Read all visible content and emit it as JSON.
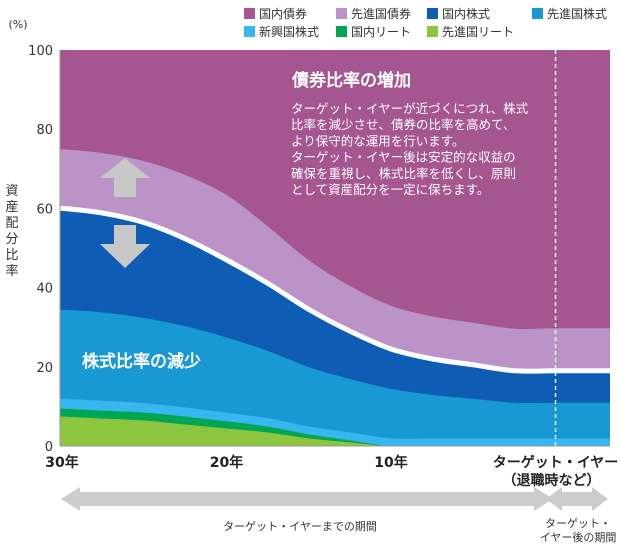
{
  "chart_data": {
    "type": "area",
    "stacked": true,
    "ylabel": "資産配分比率",
    "yunit": "(%)",
    "ylim": [
      0,
      100
    ],
    "yticks": [
      "0",
      "20",
      "40",
      "60",
      "80",
      "100"
    ],
    "x_positions": [
      30,
      27.5,
      25,
      22.5,
      20,
      17.5,
      15,
      12.5,
      10,
      7.5,
      5,
      2.5,
      0,
      -2.5,
      -4
    ],
    "xticks": [
      {
        "x": 30,
        "label": "30年"
      },
      {
        "x": 20,
        "label": "20年"
      },
      {
        "x": 10,
        "label": "10年"
      },
      {
        "x": 0,
        "label": "ターゲット・イヤー",
        "sublabel": "（退職時など）"
      }
    ],
    "target_year_x": 0,
    "legend_position": "top",
    "series": [
      {
        "name": "先進国リート",
        "color": "#8cc63f",
        "values": [
          7.5,
          7,
          6.5,
          5.5,
          4.5,
          3.5,
          2,
          1,
          0,
          0,
          0,
          0,
          0,
          0,
          0
        ]
      },
      {
        "name": "国内リート",
        "color": "#00a651",
        "values": [
          2,
          2,
          2,
          2,
          1.8,
          1.5,
          1,
          0.5,
          0,
          0,
          0,
          0,
          0,
          0,
          0
        ]
      },
      {
        "name": "新興国株式",
        "color": "#38b6ef",
        "values": [
          2.5,
          2.5,
          2.4,
          2.3,
          2.2,
          2.1,
          2,
          2,
          2,
          2,
          2,
          2,
          2,
          2,
          2
        ]
      },
      {
        "name": "先進国株式",
        "color": "#1899d4",
        "values": [
          22.5,
          22.3,
          21.5,
          20.5,
          19,
          17,
          15,
          13.5,
          12.5,
          11,
          10,
          9,
          9,
          9,
          9
        ]
      },
      {
        "name": "国内株式",
        "color": "#0f5cb5",
        "values": [
          25.5,
          25,
          24,
          22,
          19.5,
          17,
          14.5,
          12,
          10,
          9,
          8.5,
          8,
          8,
          8,
          8
        ]
      },
      {
        "name": "先進国債券",
        "color": "#bb93c6",
        "values": [
          15,
          15.2,
          15.6,
          16.2,
          16.5,
          14.5,
          12.5,
          11.5,
          11,
          10.8,
          10.7,
          10.7,
          10.8,
          10.8,
          10.8
        ]
      },
      {
        "name": "国内債券",
        "color": "#a5558f",
        "values": [
          25,
          26,
          28,
          31.5,
          36.5,
          44.4,
          53,
          59.5,
          64.5,
          67.2,
          68.8,
          70.3,
          70.2,
          70.2,
          70.2
        ]
      }
    ],
    "legend": [
      {
        "name": "国内債券",
        "color": "#a5558f"
      },
      {
        "name": "先進国債券",
        "color": "#bb93c6"
      },
      {
        "name": "国内株式",
        "color": "#0f5cb5"
      },
      {
        "name": "先進国株式",
        "color": "#1899d4"
      },
      {
        "name": "新興国株式",
        "color": "#38b6ef"
      },
      {
        "name": "国内リート",
        "color": "#00a651"
      },
      {
        "name": "先進国リート",
        "color": "#8cc63f"
      }
    ],
    "annotations": {
      "bond_title": "債券比率の増加",
      "bond_lines": [
        "ターゲット・イヤーが近づくにつれ、株式",
        "比率を減少させ、債券の比率を高めて、",
        "より保守的な運用を行います。",
        "ターゲット・イヤー後は安定的な収益の",
        "確保を重視し、株式比率を低くし、原則",
        "として資産配分を一定に保ちます。"
      ],
      "stock_label": "株式比率の減少",
      "period_before": "ターゲット・イヤーまでの期間",
      "period_after_lines": [
        "ターゲット・",
        "イヤー後の期間"
      ]
    },
    "colors": {
      "arrow": "#c8c8c8",
      "divider": "#ffffff",
      "dashed": "#ffffff"
    }
  }
}
